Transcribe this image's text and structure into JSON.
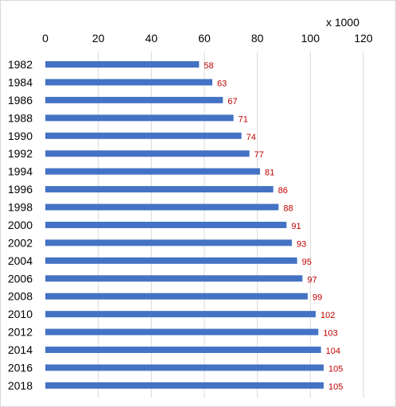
{
  "chart_data": {
    "type": "bar",
    "orientation": "horizontal",
    "title": "",
    "xlabel": "",
    "ylabel": "",
    "axis_unit": "x 1000",
    "xlim": [
      0,
      120
    ],
    "x_ticks": [
      0,
      20,
      40,
      60,
      80,
      100,
      120
    ],
    "x_axis_position": "top",
    "grid": true,
    "legend": "none",
    "bar_color": "#4472c4",
    "label_color": "#c00000",
    "categories": [
      "1982",
      "1984",
      "1986",
      "1988",
      "1990",
      "1992",
      "1994",
      "1996",
      "1998",
      "2000",
      "2002",
      "2004",
      "2006",
      "2008",
      "2010",
      "2012",
      "2014",
      "2016",
      "2018"
    ],
    "values": [
      58,
      63,
      67,
      71,
      74,
      77,
      81,
      86,
      88,
      91,
      93,
      95,
      97,
      99,
      102,
      103,
      104,
      105,
      105
    ]
  }
}
